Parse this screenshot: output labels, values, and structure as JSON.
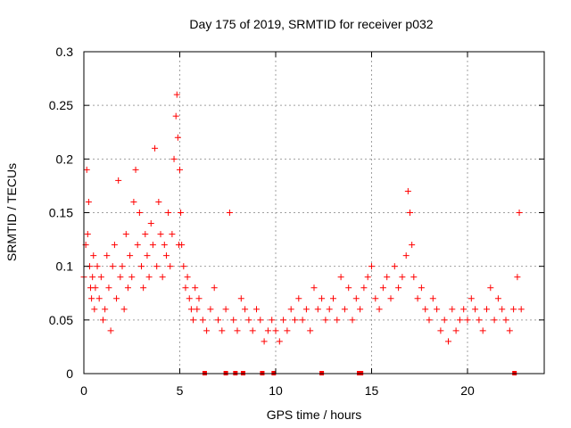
{
  "chart_data": {
    "type": "scatter",
    "title": "Day 175 of 2019, SRMTID for receiver p032",
    "xlabel": "GPS time / hours",
    "ylabel": "SRMTID / TECUs",
    "xlim": [
      0,
      24
    ],
    "ylim": [
      0,
      0.3
    ],
    "x_ticks": [
      0,
      5,
      10,
      15,
      20
    ],
    "x_tick_labels": [
      "0",
      "5",
      "10",
      "15",
      "20"
    ],
    "y_ticks": [
      0,
      0.05,
      0.1,
      0.15,
      0.2,
      0.25,
      0.3
    ],
    "y_tick_labels": [
      "0",
      "0.05",
      "0.1",
      "0.15",
      "0.2",
      "0.25",
      "0.3"
    ],
    "grid": true,
    "marker": "+",
    "series_color": "#ff0000",
    "baseline_markers_x": [
      6.3,
      7.4,
      7.9,
      8.3,
      9.3,
      9.9,
      12.4,
      14.35,
      14.45,
      22.45
    ],
    "series": [
      {
        "name": "SRMTID",
        "x": [
          0.0,
          0.1,
          0.15,
          0.2,
          0.25,
          0.3,
          0.35,
          0.4,
          0.45,
          0.5,
          0.55,
          0.6,
          0.7,
          0.8,
          0.9,
          1.0,
          1.1,
          1.2,
          1.3,
          1.4,
          1.5,
          1.6,
          1.7,
          1.8,
          1.9,
          2.0,
          2.1,
          2.2,
          2.3,
          2.4,
          2.5,
          2.6,
          2.7,
          2.8,
          2.9,
          3.0,
          3.1,
          3.2,
          3.3,
          3.4,
          3.5,
          3.6,
          3.7,
          3.8,
          3.9,
          4.0,
          4.1,
          4.2,
          4.3,
          4.4,
          4.5,
          4.6,
          4.7,
          4.8,
          4.85,
          4.9,
          4.95,
          5.0,
          5.05,
          5.1,
          5.2,
          5.3,
          5.4,
          5.5,
          5.6,
          5.7,
          5.8,
          5.9,
          6.0,
          6.2,
          6.4,
          6.6,
          6.8,
          7.0,
          7.2,
          7.4,
          7.6,
          7.8,
          8.0,
          8.2,
          8.4,
          8.6,
          8.8,
          9.0,
          9.2,
          9.4,
          9.6,
          9.8,
          10.0,
          10.2,
          10.4,
          10.6,
          10.8,
          11.0,
          11.2,
          11.4,
          11.6,
          11.8,
          12.0,
          12.2,
          12.4,
          12.6,
          12.8,
          13.0,
          13.2,
          13.4,
          13.6,
          13.8,
          14.0,
          14.2,
          14.4,
          14.6,
          14.8,
          15.0,
          15.2,
          15.4,
          15.6,
          15.8,
          16.0,
          16.2,
          16.4,
          16.6,
          16.8,
          16.9,
          17.0,
          17.1,
          17.2,
          17.4,
          17.6,
          17.8,
          18.0,
          18.2,
          18.4,
          18.6,
          18.8,
          19.0,
          19.2,
          19.4,
          19.6,
          19.8,
          20.0,
          20.2,
          20.4,
          20.6,
          20.8,
          21.0,
          21.2,
          21.4,
          21.6,
          21.8,
          22.0,
          22.2,
          22.4,
          22.6,
          22.7,
          22.8
        ],
        "y": [
          0.09,
          0.12,
          0.19,
          0.13,
          0.16,
          0.1,
          0.08,
          0.07,
          0.09,
          0.11,
          0.06,
          0.08,
          0.1,
          0.07,
          0.09,
          0.05,
          0.06,
          0.11,
          0.08,
          0.04,
          0.1,
          0.12,
          0.07,
          0.18,
          0.09,
          0.1,
          0.06,
          0.13,
          0.08,
          0.11,
          0.09,
          0.16,
          0.19,
          0.12,
          0.15,
          0.1,
          0.08,
          0.13,
          0.11,
          0.09,
          0.14,
          0.12,
          0.21,
          0.1,
          0.16,
          0.13,
          0.09,
          0.12,
          0.11,
          0.15,
          0.1,
          0.13,
          0.2,
          0.24,
          0.26,
          0.22,
          0.12,
          0.19,
          0.15,
          0.12,
          0.1,
          0.08,
          0.09,
          0.07,
          0.06,
          0.05,
          0.08,
          0.06,
          0.07,
          0.05,
          0.04,
          0.06,
          0.08,
          0.05,
          0.04,
          0.06,
          0.15,
          0.05,
          0.04,
          0.07,
          0.06,
          0.05,
          0.04,
          0.06,
          0.05,
          0.03,
          0.04,
          0.05,
          0.04,
          0.03,
          0.05,
          0.04,
          0.06,
          0.05,
          0.07,
          0.05,
          0.06,
          0.04,
          0.08,
          0.06,
          0.07,
          0.05,
          0.06,
          0.07,
          0.05,
          0.09,
          0.06,
          0.08,
          0.05,
          0.07,
          0.06,
          0.08,
          0.09,
          0.1,
          0.07,
          0.06,
          0.08,
          0.09,
          0.07,
          0.1,
          0.08,
          0.09,
          0.11,
          0.17,
          0.15,
          0.12,
          0.09,
          0.07,
          0.08,
          0.06,
          0.05,
          0.07,
          0.06,
          0.04,
          0.05,
          0.03,
          0.06,
          0.04,
          0.05,
          0.06,
          0.05,
          0.07,
          0.06,
          0.05,
          0.04,
          0.06,
          0.08,
          0.05,
          0.07,
          0.06,
          0.05,
          0.04,
          0.06,
          0.09,
          0.15,
          0.06
        ]
      }
    ]
  }
}
